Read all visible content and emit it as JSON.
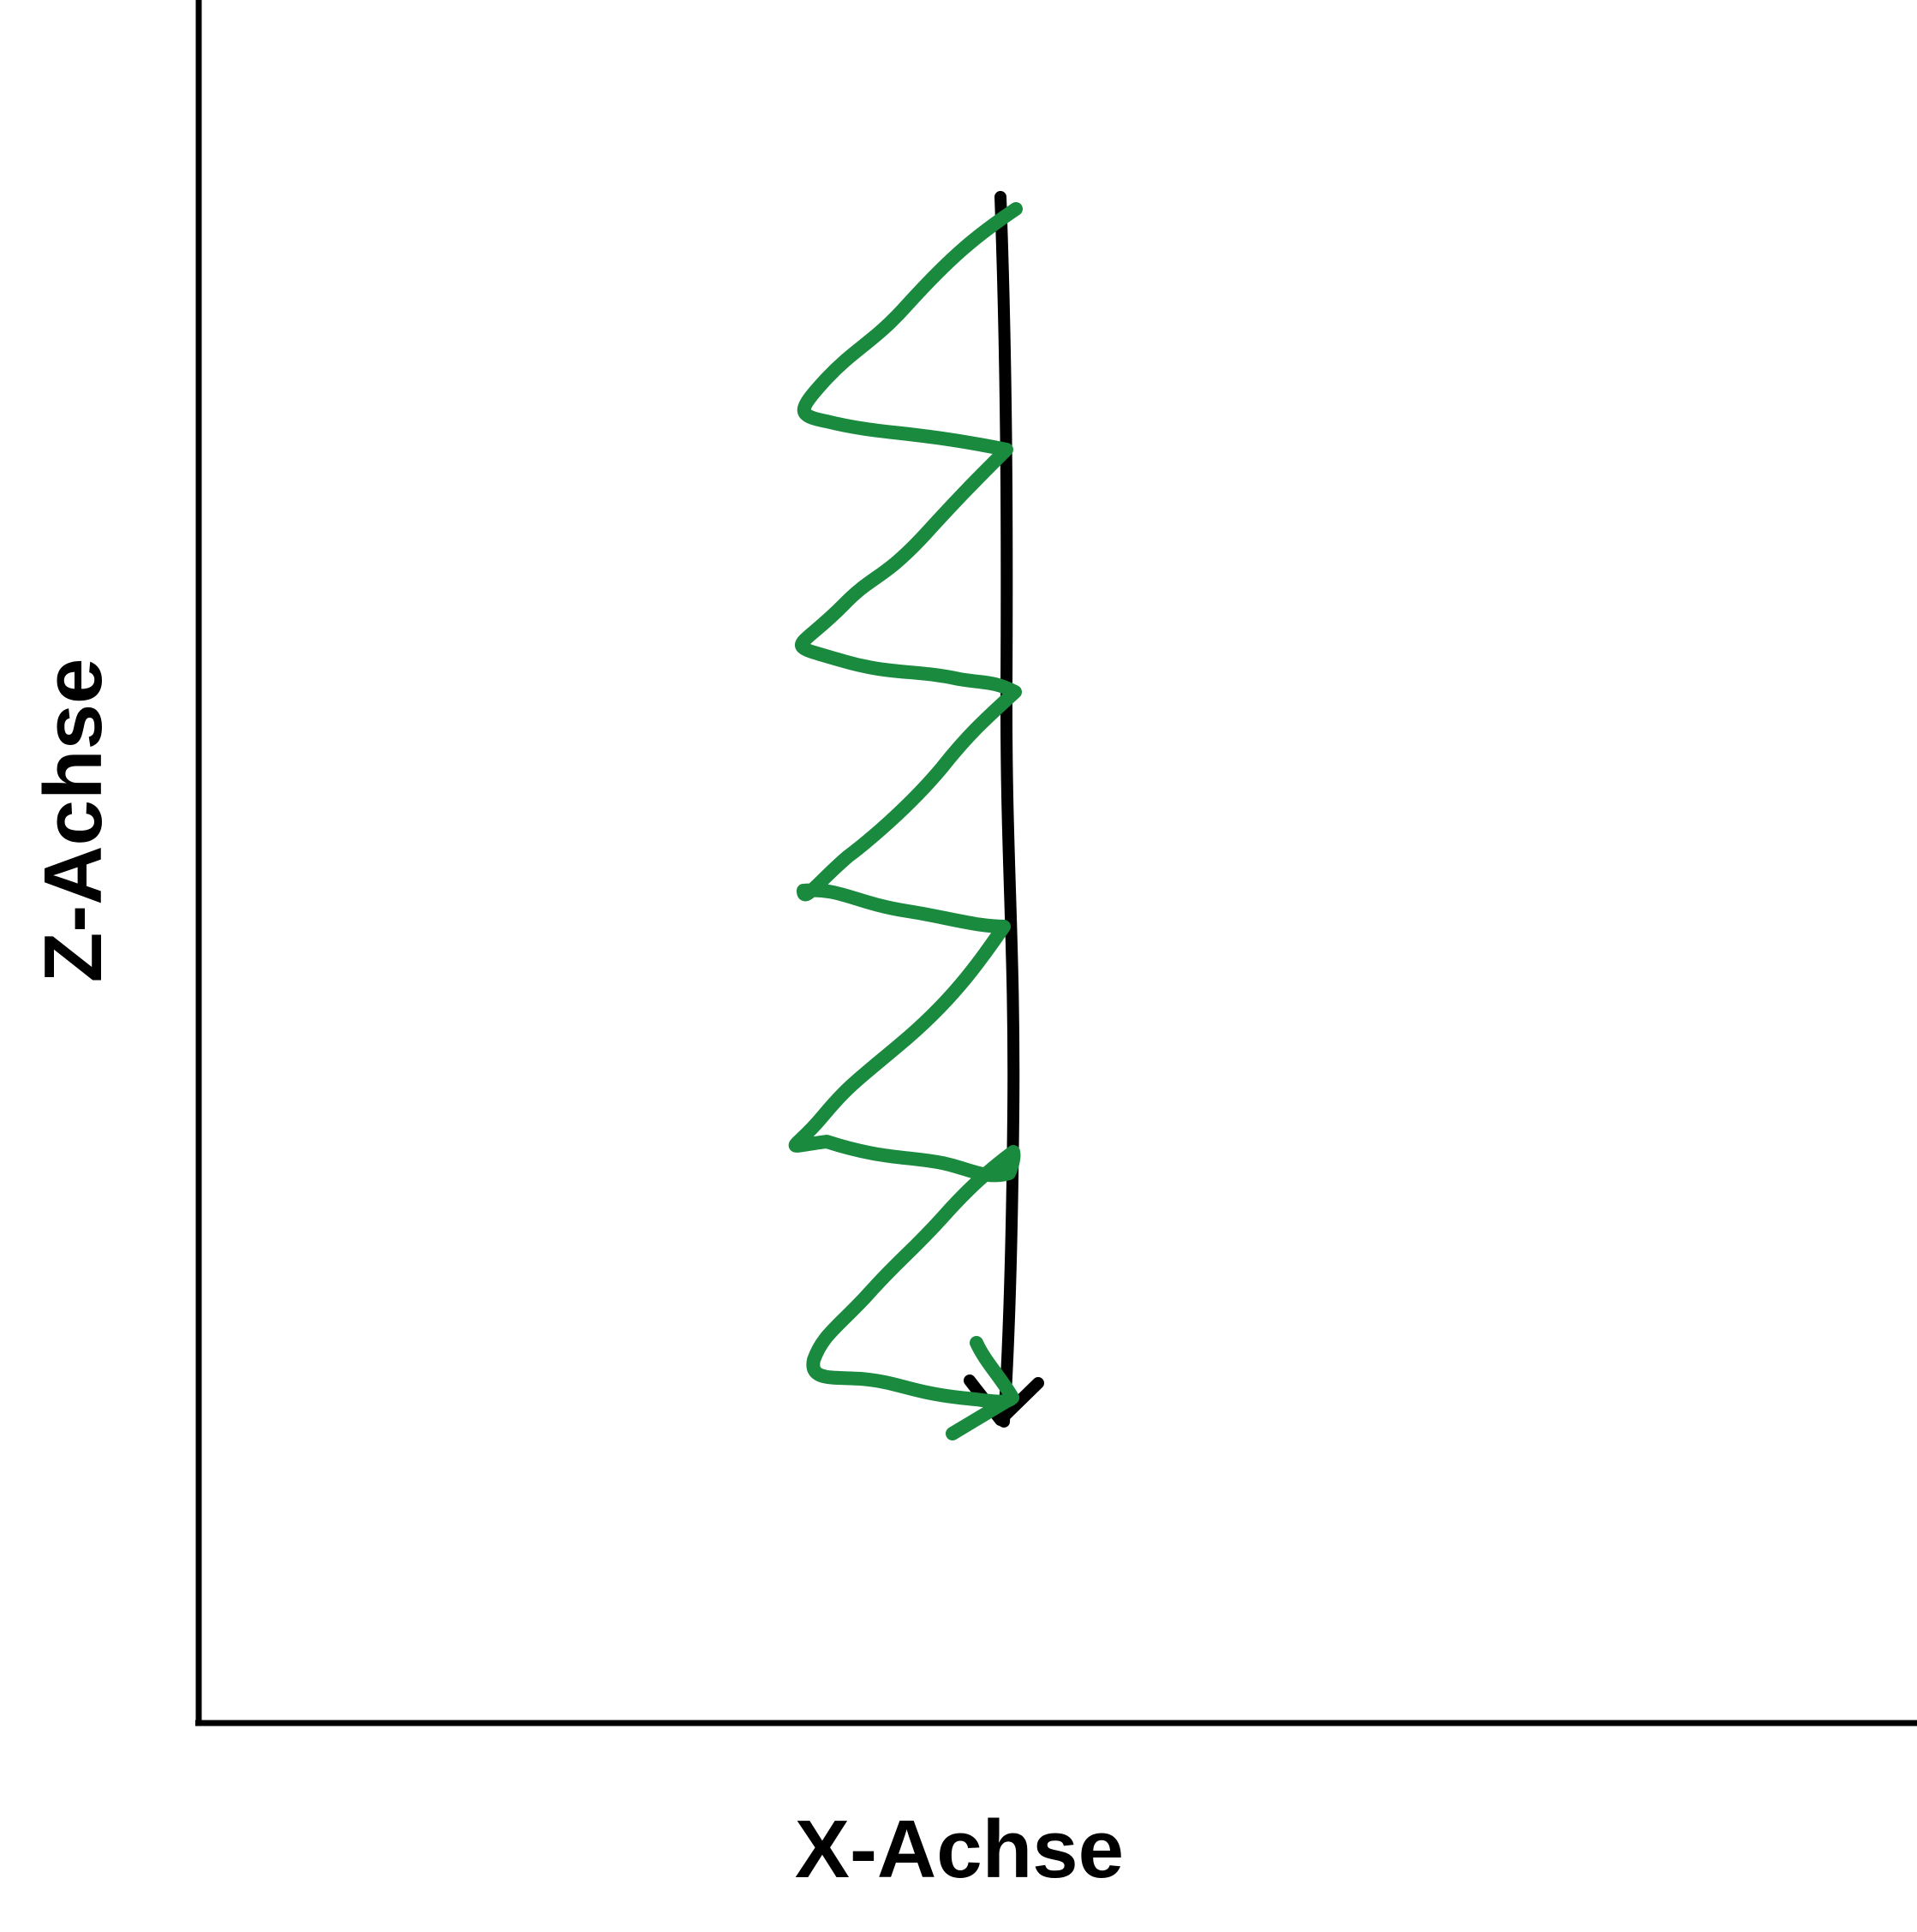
{
  "diagram": {
    "x_axis_label": "X-Achse",
    "z_axis_label": "Z-Achse",
    "colors": {
      "axes": "#000000",
      "vertical_line": "#000000",
      "zigzag": "#1a8a3f"
    }
  }
}
